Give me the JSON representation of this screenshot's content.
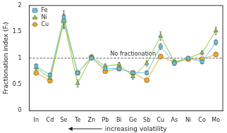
{
  "chart_data": {
    "type": "line",
    "x_label": "increasing volatility",
    "y_label": "Fractionation index (Fᵢ)",
    "categories": [
      "In",
      "Cd",
      "Se",
      "Te",
      "Zn",
      "Pb",
      "Bi",
      "Ge",
      "Sb",
      "Cu",
      "As",
      "Ni",
      "Co",
      "Mo"
    ],
    "series": [
      {
        "name": "Fe",
        "color": "#5bc8e8",
        "marker": "square",
        "values": [
          0.85,
          0.68,
          1.78,
          0.72,
          1.0,
          0.8,
          0.8,
          0.72,
          0.72,
          1.22,
          0.9,
          1.0,
          0.93,
          1.3
        ],
        "errors": [
          0.04,
          0.04,
          0.12,
          0.03,
          0.04,
          0.04,
          0.04,
          0.04,
          0.04,
          0.06,
          0.04,
          0.03,
          0.04,
          0.05
        ]
      },
      {
        "name": "Ni",
        "color": "#8cc63f",
        "marker": "triangle",
        "values": [
          0.82,
          0.62,
          1.7,
          0.52,
          1.02,
          0.85,
          0.88,
          0.65,
          0.9,
          1.42,
          0.93,
          1.0,
          1.1,
          1.52
        ],
        "errors": [
          0.04,
          0.04,
          0.14,
          0.07,
          0.04,
          0.04,
          0.04,
          0.05,
          0.05,
          0.08,
          0.04,
          0.03,
          0.04,
          0.07
        ]
      },
      {
        "name": "Cu",
        "color": "#f5a623",
        "marker": "circle",
        "values": [
          0.72,
          0.57,
          1.7,
          0.72,
          1.02,
          0.75,
          0.8,
          0.72,
          0.58,
          1.03,
          0.92,
          0.98,
          0.98,
          1.07
        ],
        "errors": [
          0.03,
          0.03,
          0.12,
          0.03,
          0.04,
          0.03,
          0.03,
          0.03,
          0.03,
          0.04,
          0.03,
          0.03,
          0.03,
          0.04
        ]
      }
    ],
    "annotation": {
      "text": "No fractionation",
      "y": 1,
      "line_style": "dashed"
    },
    "ylim": [
      0,
      2
    ],
    "yticks": [
      0,
      0.5,
      1,
      1.5,
      2
    ],
    "grid": false,
    "legend": "top-left"
  }
}
